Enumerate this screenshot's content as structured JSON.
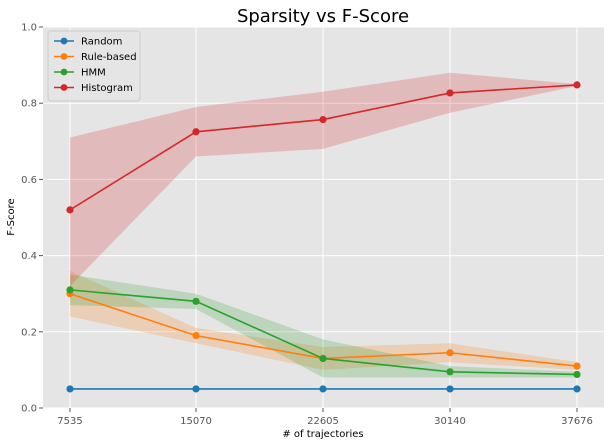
{
  "chart_data": {
    "type": "line",
    "title": "Sparsity vs F-Score",
    "xlabel": "# of trajectories",
    "ylabel": "F-Score",
    "categories": [
      "7535",
      "15070",
      "22605",
      "30140",
      "37676"
    ],
    "ylim": [
      0,
      1.0
    ],
    "yticks": [
      "0.0",
      "0.2",
      "0.4",
      "0.6",
      "0.8",
      "1.0"
    ],
    "grid": true,
    "legend_position": "top-left",
    "series": [
      {
        "name": "Random",
        "color": "#1f77b4",
        "values": [
          0.05,
          0.05,
          0.05,
          0.05,
          0.05
        ],
        "lower": [
          0.05,
          0.05,
          0.05,
          0.05,
          0.05
        ],
        "upper": [
          0.05,
          0.05,
          0.05,
          0.05,
          0.05
        ]
      },
      {
        "name": "Rule-based",
        "color": "#ff7f0e",
        "values": [
          0.3,
          0.19,
          0.13,
          0.145,
          0.11
        ],
        "lower": [
          0.24,
          0.17,
          0.1,
          0.12,
          0.1
        ],
        "upper": [
          0.36,
          0.21,
          0.16,
          0.17,
          0.12
        ]
      },
      {
        "name": "HMM",
        "color": "#2ca02c",
        "values": [
          0.31,
          0.28,
          0.13,
          0.095,
          0.088
        ],
        "lower": [
          0.27,
          0.26,
          0.08,
          0.08,
          0.08
        ],
        "upper": [
          0.35,
          0.3,
          0.18,
          0.11,
          0.095
        ]
      },
      {
        "name": "Histogram",
        "color": "#d62728",
        "values": [
          0.52,
          0.725,
          0.757,
          0.827,
          0.848
        ],
        "lower": [
          0.32,
          0.66,
          0.68,
          0.775,
          0.845
        ],
        "upper": [
          0.71,
          0.79,
          0.83,
          0.88,
          0.85
        ]
      }
    ]
  }
}
